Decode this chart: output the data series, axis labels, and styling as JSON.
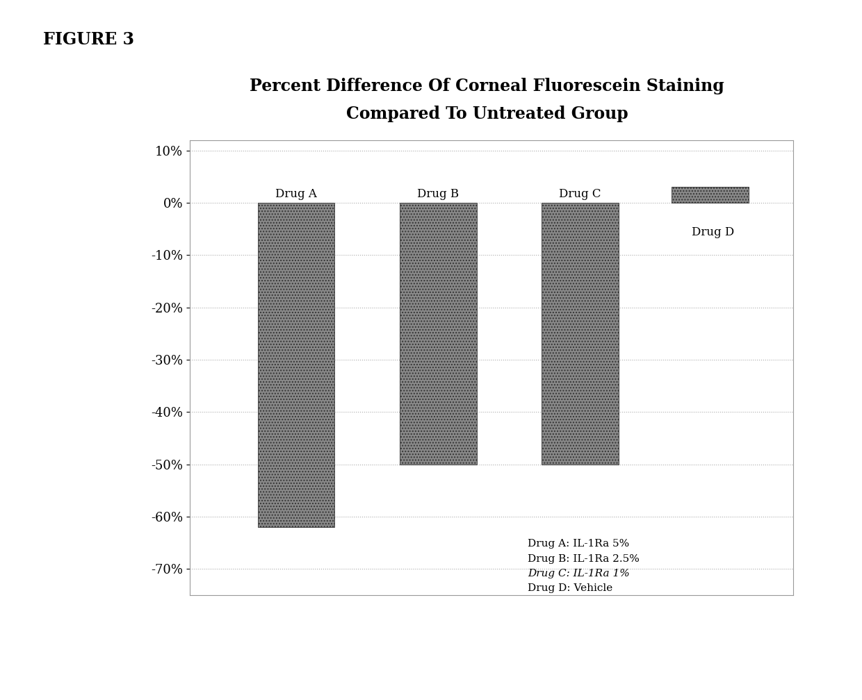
{
  "title_line1": "Percent Difference Of Corneal Fluorescein Staining",
  "title_line2": "Compared To Untreated Group",
  "figure_label": "FIGURE 3",
  "categories": [
    "Drug A",
    "Drug B",
    "Drug C",
    "Drug D"
  ],
  "values": [
    -0.62,
    -0.5,
    -0.5,
    0.03
  ],
  "bar_color": "#888888",
  "ylim": [
    -0.75,
    0.12
  ],
  "yticks": [
    0.1,
    0.0,
    -0.1,
    -0.2,
    -0.3,
    -0.4,
    -0.5,
    -0.6,
    -0.7
  ],
  "ytick_labels": [
    "10%",
    "0%",
    "-10%",
    "-20%",
    "-30%",
    "-40%",
    "-50%",
    "-60%",
    "-70%"
  ],
  "grid_color": "#aaaaaa",
  "legend_lines": [
    "Drug A: IL-1Ra 5%",
    "Drug B: IL-1Ra 2.5%",
    "Drug C: IL-1Ra 1%",
    "Drug D: Vehicle"
  ],
  "legend_italic": [
    false,
    false,
    true,
    false
  ],
  "background_color": "#ffffff"
}
